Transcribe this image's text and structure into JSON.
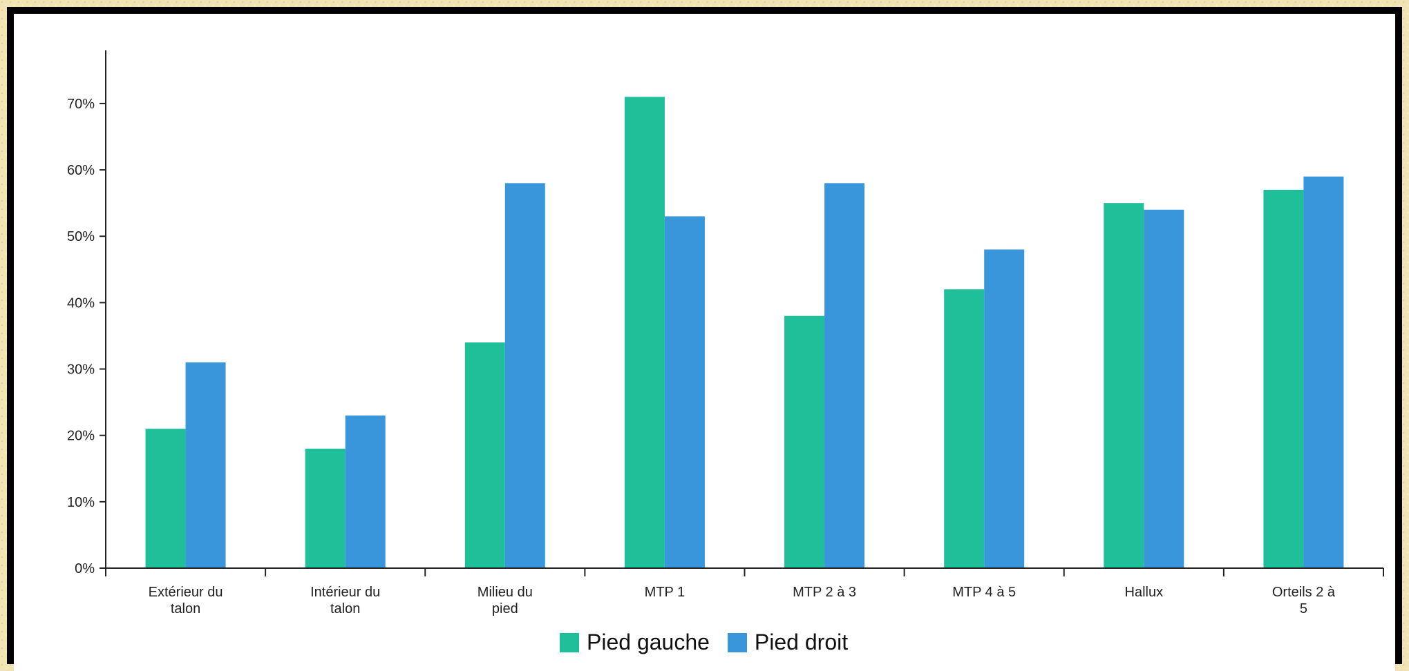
{
  "chart_data": {
    "type": "bar",
    "categories": [
      [
        "Extérieur du",
        "talon"
      ],
      [
        "Intérieur du",
        "talon"
      ],
      [
        "Milieu du",
        "pied"
      ],
      [
        "MTP 1"
      ],
      [
        "MTP 2 à 3"
      ],
      [
        "MTP 4 à 5"
      ],
      [
        "Hallux"
      ],
      [
        "Orteils 2 à",
        "5"
      ]
    ],
    "series": [
      {
        "name": "Pied gauche",
        "color": "#1fbf9a",
        "values": [
          21,
          18,
          34,
          71,
          38,
          42,
          55,
          57
        ]
      },
      {
        "name": "Pied droit",
        "color": "#3a96db",
        "values": [
          31,
          23,
          58,
          53,
          58,
          48,
          54,
          59
        ]
      }
    ],
    "y_ticks": [
      "0%",
      "10%",
      "20%",
      "30%",
      "40%",
      "50%",
      "60%",
      "70%"
    ],
    "y_tick_values": [
      0,
      10,
      20,
      30,
      40,
      50,
      60,
      70
    ],
    "ylim": [
      0,
      78
    ],
    "grid": false,
    "legend_position": "bottom-center"
  }
}
